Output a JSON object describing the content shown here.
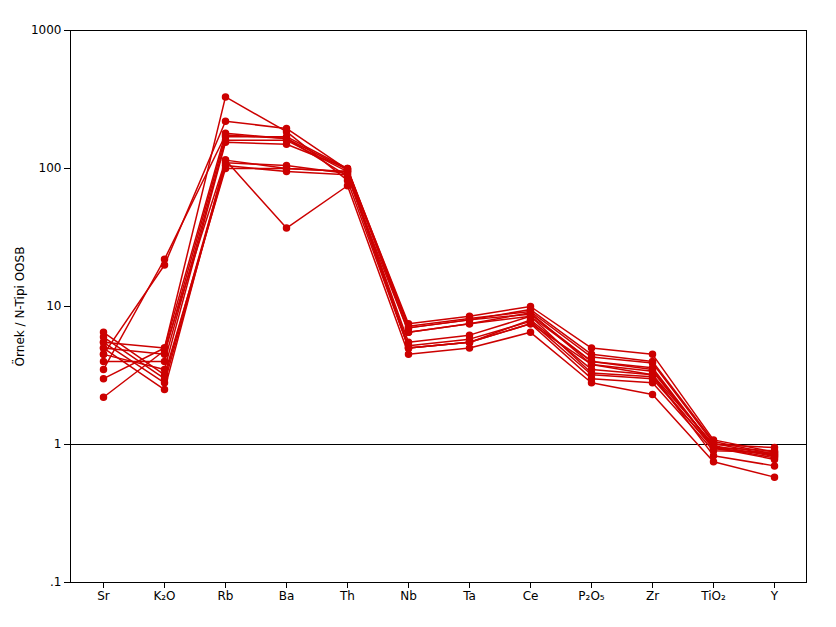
{
  "chart_data": {
    "type": "line",
    "ylabel": "Örnek / N-Tipi OOSB",
    "categories": [
      "Sr",
      "K₂O",
      "Rb",
      "Ba",
      "Th",
      "Nb",
      "Ta",
      "Ce",
      "P₂O₅",
      "Zr",
      "TiO₂",
      "Y"
    ],
    "color": "#CC0000",
    "marker": "circle",
    "log": "y",
    "grid": false,
    "ylim": [
      0.1,
      1000
    ],
    "yticks": [
      {
        "value": 0.1,
        "label": ".1"
      },
      1,
      10,
      100,
      1000
    ],
    "hline": 1,
    "series": [
      {
        "values": [
          6.5,
          3.2,
          100,
          100,
          95,
          5.0,
          5.5,
          8.0,
          3.5,
          3.2,
          1.0,
          0.95
        ]
      },
      {
        "values": [
          6.0,
          3.0,
          110,
          105,
          92,
          5.2,
          5.8,
          7.8,
          3.2,
          3.0,
          0.95,
          0.9
        ]
      },
      {
        "values": [
          5.5,
          2.8,
          105,
          95,
          90,
          5.0,
          5.5,
          7.5,
          3.0,
          2.8,
          0.9,
          0.88
        ]
      },
      {
        "values": [
          5.0,
          2.5,
          115,
          100,
          95,
          5.5,
          6.2,
          8.5,
          3.3,
          3.1,
          0.93,
          0.85
        ]
      },
      {
        "values": [
          4.5,
          3.5,
          155,
          150,
          100,
          6.5,
          7.5,
          9.0,
          3.8,
          3.4,
          0.98,
          0.82
        ]
      },
      {
        "values": [
          4.0,
          4.0,
          160,
          160,
          95,
          7.0,
          8.0,
          8.8,
          4.0,
          3.6,
          0.96,
          0.8
        ]
      },
      {
        "values": [
          5.0,
          4.5,
          170,
          170,
          100,
          7.2,
          8.2,
          9.2,
          4.3,
          3.9,
          1.02,
          0.83
        ]
      },
      {
        "values": [
          5.5,
          5.0,
          180,
          165,
          98,
          7.0,
          8.0,
          9.5,
          4.5,
          4.0,
          1.05,
          0.85
        ]
      },
      {
        "values": [
          4.5,
          20.0,
          220,
          195,
          98,
          7.5,
          8.5,
          10.0,
          5.0,
          4.5,
          1.08,
          0.88
        ]
      },
      {
        "values": [
          3.5,
          22.0,
          175,
          165,
          88,
          6.5,
          7.5,
          8.5,
          4.0,
          3.5,
          0.95,
          0.78
        ]
      },
      {
        "values": [
          3.0,
          5.0,
          330,
          185,
          82,
          5.0,
          5.5,
          7.5,
          3.8,
          3.2,
          0.83,
          0.7
        ]
      },
      {
        "values": [
          2.2,
          4.8,
          115,
          37,
          75,
          4.5,
          5.0,
          6.5,
          2.8,
          2.3,
          0.75,
          0.58
        ]
      }
    ]
  }
}
